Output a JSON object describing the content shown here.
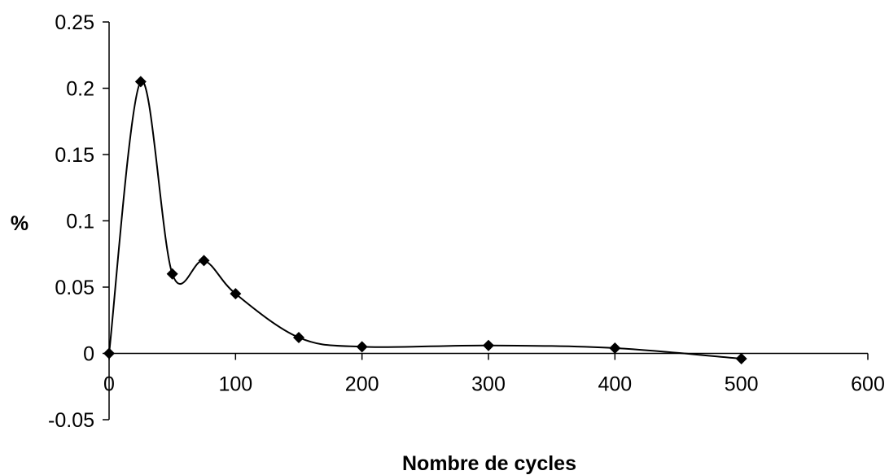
{
  "chart_data": {
    "type": "line",
    "title": "",
    "xlabel": "Nombre de cycles",
    "ylabel": "%",
    "xlim": [
      0,
      600
    ],
    "ylim": [
      -0.05,
      0.25
    ],
    "x_ticks": [
      0,
      100,
      200,
      300,
      400,
      500,
      600
    ],
    "x_tick_labels": [
      "0",
      "100",
      "200",
      "300",
      "400",
      "500",
      "600"
    ],
    "y_ticks": [
      -0.05,
      0,
      0.05,
      0.1,
      0.15,
      0.2,
      0.25
    ],
    "y_tick_labels": [
      "-0.05",
      "0",
      "0.05",
      "0.1",
      "0.15",
      "0.2",
      "0.25"
    ],
    "grid": false,
    "legend": "none",
    "line_style": "smoothed",
    "marker": "diamond",
    "series": [
      {
        "x": [
          0,
          25,
          50,
          75,
          100,
          150,
          200,
          300,
          400,
          500
        ],
        "values": [
          0,
          0.205,
          0.06,
          0.07,
          0.045,
          0.012,
          0.005,
          0.006,
          0.004,
          -0.004
        ],
        "color": "#000000"
      }
    ]
  }
}
